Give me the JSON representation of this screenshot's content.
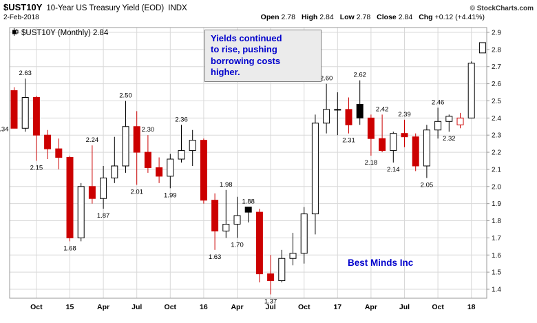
{
  "header": {
    "symbol": "$UST10Y",
    "title": "10-Year US Treasury Yield (EOD)",
    "exchange": "INDX",
    "date": "2-Feb-2018",
    "copyright": "© StockCharts.com",
    "quote": [
      {
        "label": "Open",
        "value": "2.78"
      },
      {
        "label": "High",
        "value": "2.84"
      },
      {
        "label": "Low",
        "value": "2.78"
      },
      {
        "label": "Close",
        "value": "2.84"
      },
      {
        "label": "Chg",
        "value": "+0.12 (+4.41%)"
      }
    ]
  },
  "legend": {
    "text": "$UST10Y (Monthly) 2.84"
  },
  "annotation": {
    "lines": [
      "Yields continued",
      "to rise, pushing",
      "borrowing costs",
      "higher."
    ]
  },
  "watermark": {
    "text": "Best Minds Inc"
  },
  "colors": {
    "down_red": "#cc0000",
    "up_border": "#000000",
    "black_candle": "#000000",
    "accent_blue": "#0000cc",
    "grid": "#d8d8d8",
    "axis_border": "#999999"
  },
  "chart_data": {
    "type": "candlestick",
    "title": "$UST10Y 10-Year US Treasury Yield (EOD) INDX - Monthly",
    "period": "Monthly",
    "last": 2.84,
    "y_axis": {
      "min": 1.4,
      "max": 2.9,
      "step": 0.1
    },
    "x_axis_labels": [
      {
        "label": "Oct",
        "candle": 3
      },
      {
        "label": "15",
        "candle": 6
      },
      {
        "label": "Apr",
        "candle": 9
      },
      {
        "label": "Jul",
        "candle": 12
      },
      {
        "label": "Oct",
        "candle": 15
      },
      {
        "label": "16",
        "candle": 18
      },
      {
        "label": "Apr",
        "candle": 21
      },
      {
        "label": "Jul",
        "candle": 24
      },
      {
        "label": "Oct",
        "candle": 27
      },
      {
        "label": "17",
        "candle": 30
      },
      {
        "label": "Apr",
        "candle": 33
      },
      {
        "label": "Jul",
        "candle": 36
      },
      {
        "label": "Oct",
        "candle": 39
      },
      {
        "label": "18",
        "candle": 42
      }
    ],
    "candles": [
      {
        "o": 2.56,
        "h": 2.58,
        "l": 2.34,
        "c": 2.34,
        "color": "red",
        "label": "2.34",
        "label_pos": "left"
      },
      {
        "o": 2.34,
        "h": 2.63,
        "l": 2.32,
        "c": 2.52,
        "color": "white",
        "label": "2.63",
        "label_pos": "above"
      },
      {
        "o": 2.52,
        "h": 2.53,
        "l": 2.15,
        "c": 2.3,
        "color": "red",
        "label": "2.15",
        "label_pos": "below"
      },
      {
        "o": 2.3,
        "h": 2.33,
        "l": 2.16,
        "c": 2.22,
        "color": "red"
      },
      {
        "o": 2.22,
        "h": 2.28,
        "l": 2.1,
        "c": 2.17,
        "color": "red"
      },
      {
        "o": 2.17,
        "h": 2.18,
        "l": 1.68,
        "c": 1.7,
        "color": "red",
        "label": "1.68",
        "label_pos": "below"
      },
      {
        "o": 1.7,
        "h": 2.02,
        "l": 1.68,
        "c": 2.0,
        "color": "white"
      },
      {
        "o": 2.0,
        "h": 2.24,
        "l": 1.9,
        "c": 1.93,
        "color": "red",
        "label": "2.24",
        "label_pos": "above"
      },
      {
        "o": 1.93,
        "h": 2.12,
        "l": 1.87,
        "c": 2.05,
        "color": "white",
        "label": "1.87",
        "label_pos": "below"
      },
      {
        "o": 2.05,
        "h": 2.29,
        "l": 2.02,
        "c": 2.12,
        "color": "white"
      },
      {
        "o": 2.12,
        "h": 2.5,
        "l": 2.08,
        "c": 2.35,
        "color": "white",
        "label": "2.50",
        "label_pos": "above"
      },
      {
        "o": 2.35,
        "h": 2.44,
        "l": 2.01,
        "c": 2.2,
        "color": "red",
        "label": "2.01",
        "label_pos": "below"
      },
      {
        "o": 2.2,
        "h": 2.3,
        "l": 2.08,
        "c": 2.11,
        "color": "red",
        "label": "2.30",
        "label_pos": "above"
      },
      {
        "o": 2.11,
        "h": 2.17,
        "l": 2.02,
        "c": 2.06,
        "color": "red"
      },
      {
        "o": 2.06,
        "h": 2.19,
        "l": 1.99,
        "c": 2.16,
        "color": "white",
        "label": "1.99",
        "label_pos": "below"
      },
      {
        "o": 2.16,
        "h": 2.36,
        "l": 2.14,
        "c": 2.21,
        "color": "white",
        "label": "2.36",
        "label_pos": "above"
      },
      {
        "o": 2.21,
        "h": 2.33,
        "l": 2.12,
        "c": 2.27,
        "color": "white"
      },
      {
        "o": 2.27,
        "h": 2.28,
        "l": 1.9,
        "c": 1.92,
        "color": "red"
      },
      {
        "o": 1.92,
        "h": 1.96,
        "l": 1.63,
        "c": 1.74,
        "color": "red",
        "label": "1.63",
        "label_pos": "below"
      },
      {
        "o": 1.74,
        "h": 1.98,
        "l": 1.7,
        "c": 1.78,
        "color": "white",
        "label": "1.98",
        "label_pos": "above"
      },
      {
        "o": 1.78,
        "h": 1.94,
        "l": 1.7,
        "c": 1.83,
        "color": "white",
        "label": "1.70",
        "label_pos": "below"
      },
      {
        "o": 1.88,
        "h": 1.88,
        "l": 1.79,
        "c": 1.85,
        "color": "black",
        "label": "1.88",
        "label_pos": "above"
      },
      {
        "o": 1.85,
        "h": 1.87,
        "l": 1.44,
        "c": 1.49,
        "color": "red"
      },
      {
        "o": 1.49,
        "h": 1.6,
        "l": 1.37,
        "c": 1.45,
        "color": "red",
        "label": "1.37",
        "label_pos": "below"
      },
      {
        "o": 1.45,
        "h": 1.63,
        "l": 1.44,
        "c": 1.58,
        "color": "white"
      },
      {
        "o": 1.58,
        "h": 1.73,
        "l": 1.54,
        "c": 1.61,
        "color": "white"
      },
      {
        "o": 1.61,
        "h": 1.88,
        "l": 1.55,
        "c": 1.84,
        "color": "white"
      },
      {
        "o": 1.84,
        "h": 2.42,
        "l": 1.72,
        "c": 2.37,
        "color": "white"
      },
      {
        "o": 2.37,
        "h": 2.6,
        "l": 2.31,
        "c": 2.45,
        "color": "white",
        "label": "2.60",
        "label_pos": "above"
      },
      {
        "o": 2.45,
        "h": 2.55,
        "l": 2.3,
        "c": 2.45,
        "color": "white"
      },
      {
        "o": 2.45,
        "h": 2.52,
        "l": 2.31,
        "c": 2.36,
        "color": "red",
        "label": "2.31",
        "label_pos": "below"
      },
      {
        "o": 2.48,
        "h": 2.62,
        "l": 2.36,
        "c": 2.4,
        "color": "black",
        "label": "2.62",
        "label_pos": "above"
      },
      {
        "o": 2.4,
        "h": 2.42,
        "l": 2.18,
        "c": 2.28,
        "color": "red",
        "label": "2.18",
        "label_pos": "below"
      },
      {
        "o": 2.28,
        "h": 2.42,
        "l": 2.2,
        "c": 2.21,
        "color": "red",
        "label": "2.42",
        "label_pos": "above"
      },
      {
        "o": 2.21,
        "h": 2.32,
        "l": 2.14,
        "c": 2.31,
        "color": "white",
        "label": "2.14",
        "label_pos": "below"
      },
      {
        "o": 2.31,
        "h": 2.39,
        "l": 2.23,
        "c": 2.29,
        "color": "red",
        "label": "2.39",
        "label_pos": "above"
      },
      {
        "o": 2.29,
        "h": 2.31,
        "l": 2.09,
        "c": 2.12,
        "color": "red"
      },
      {
        "o": 2.12,
        "h": 2.36,
        "l": 2.05,
        "c": 2.33,
        "color": "white",
        "label": "2.05",
        "label_pos": "below"
      },
      {
        "o": 2.33,
        "h": 2.46,
        "l": 2.28,
        "c": 2.38,
        "color": "white",
        "label": "2.46",
        "label_pos": "above"
      },
      {
        "o": 2.38,
        "h": 2.42,
        "l": 2.32,
        "c": 2.41,
        "color": "white",
        "label": "2.32",
        "label_pos": "below"
      },
      {
        "o": 2.36,
        "h": 2.43,
        "l": 2.34,
        "c": 2.4,
        "color": "hollow-red"
      },
      {
        "o": 2.4,
        "h": 2.73,
        "l": 2.4,
        "c": 2.72,
        "color": "white"
      },
      {
        "o": 2.78,
        "h": 2.84,
        "l": 2.78,
        "c": 2.84,
        "color": "white"
      }
    ]
  }
}
